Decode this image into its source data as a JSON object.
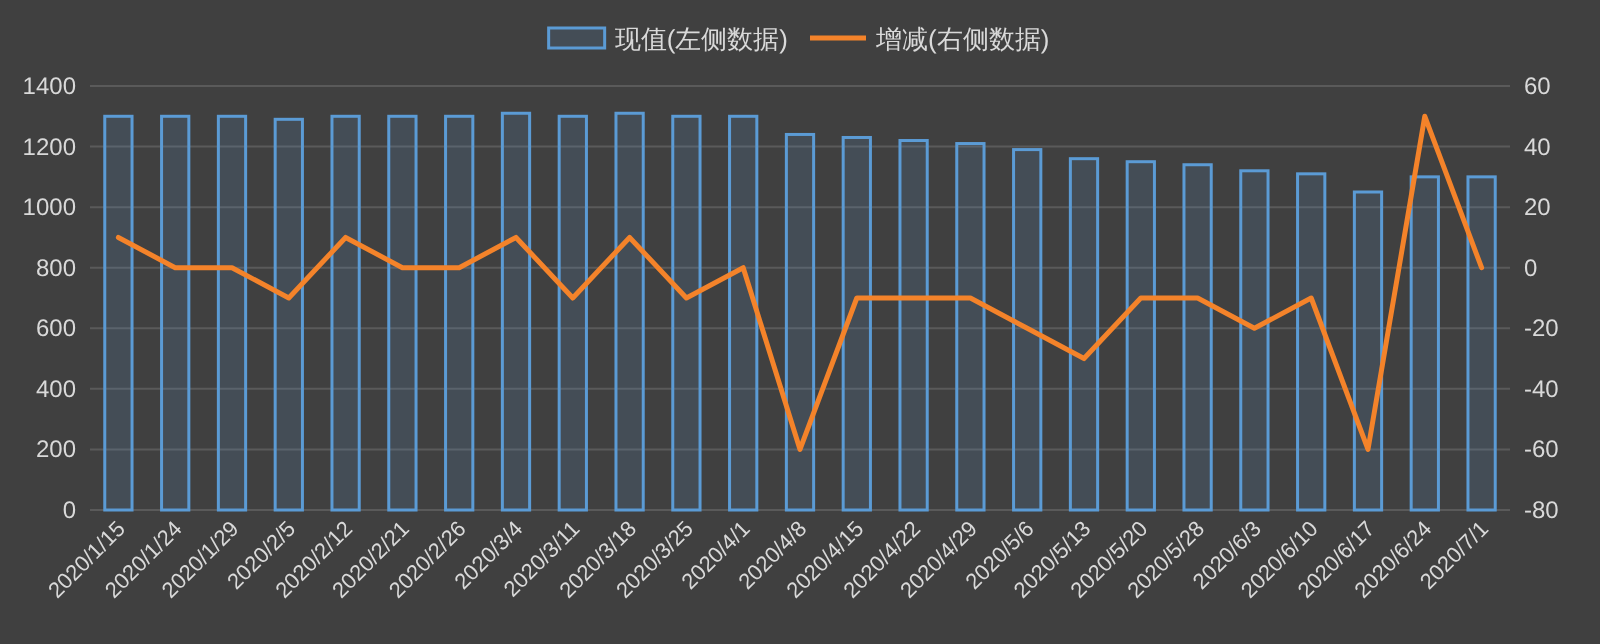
{
  "chart_data": {
    "type": "bar",
    "categories": [
      "2020/1/15",
      "2020/1/24",
      "2020/1/29",
      "2020/2/5",
      "2020/2/12",
      "2020/2/21",
      "2020/2/26",
      "2020/3/4",
      "2020/3/11",
      "2020/3/18",
      "2020/3/25",
      "2020/4/1",
      "2020/4/8",
      "2020/4/15",
      "2020/4/22",
      "2020/4/29",
      "2020/5/6",
      "2020/5/13",
      "2020/5/20",
      "2020/5/28",
      "2020/6/3",
      "2020/6/10",
      "2020/6/17",
      "2020/6/24",
      "2020/7/1"
    ],
    "series": [
      {
        "name": "现值(左侧数据)",
        "color": "#5b9bd5",
        "values": [
          1300,
          1300,
          1300,
          1290,
          1300,
          1300,
          1300,
          1310,
          1300,
          1310,
          1300,
          1300,
          1240,
          1230,
          1220,
          1210,
          1190,
          1160,
          1150,
          1140,
          1120,
          1110,
          1050,
          1100,
          1100
        ]
      },
      {
        "name": "增减(右侧数据)",
        "type": "line",
        "axis": "y2",
        "color": "#f4832a",
        "values": [
          10,
          0,
          0,
          -10,
          10,
          0,
          0,
          10,
          -10,
          10,
          -10,
          0,
          -60,
          -10,
          -10,
          -10,
          -20,
          -30,
          -10,
          -10,
          -20,
          -10,
          -60,
          50,
          0
        ]
      }
    ],
    "ylim": [
      0,
      1400
    ],
    "yticks": [
      0,
      200,
      400,
      600,
      800,
      1000,
      1200,
      1400
    ],
    "y2lim": [
      -80,
      60
    ],
    "y2ticks": [
      -80,
      -60,
      -40,
      -20,
      0,
      20,
      40,
      60
    ],
    "grid": "y",
    "legend": "top",
    "marker": "none",
    "line_style": "solid"
  }
}
